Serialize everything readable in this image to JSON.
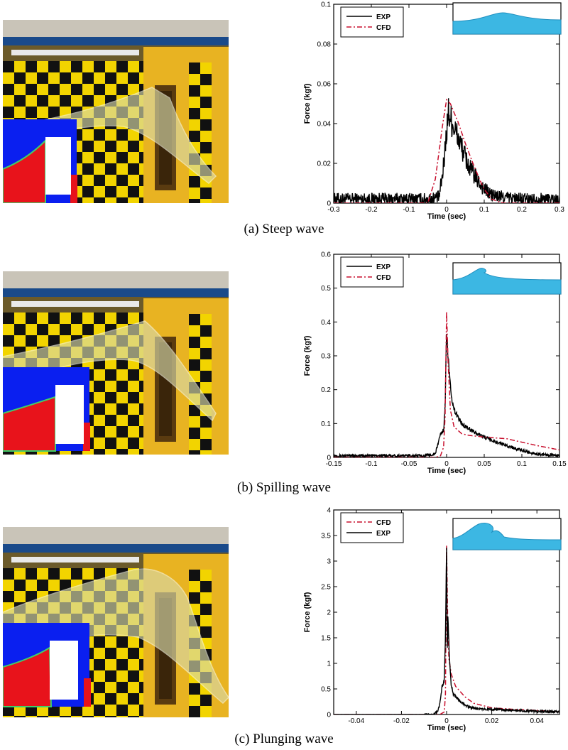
{
  "panels": [
    {
      "id": "a",
      "caption": "(a)  Steep  wave",
      "photo": {
        "description_colors": {
          "water": "#2bb0e0",
          "checker_dark": "#111111",
          "checker_light": "#f2d400",
          "cfd_fluid": "#e8131b",
          "cfd_air": "#0a1ff0"
        }
      },
      "chart_data": {
        "type": "line",
        "title": "",
        "xlabel": "Time (sec)",
        "ylabel": "Force (kgf)",
        "xlim": [
          -0.3,
          0.3
        ],
        "ylim": [
          0,
          0.1
        ],
        "xticks": [
          -0.3,
          -0.2,
          -0.1,
          0,
          0.1,
          0.2,
          0.3
        ],
        "xtick_labels": [
          "-0.3",
          "-0.2",
          "-0.1",
          "0",
          "0.1",
          "0.2",
          "0.3"
        ],
        "yticks": [
          0,
          0.02,
          0.04,
          0.06,
          0.08,
          0.1
        ],
        "ytick_labels": [
          "0",
          "0.02",
          "0.04",
          "0.06",
          "0.08",
          "0.1"
        ],
        "legend": {
          "position": "top-left",
          "entries": [
            "EXP",
            "CFD"
          ]
        },
        "series": [
          {
            "name": "EXP",
            "color": "#000000",
            "dash": "solid",
            "noise": 0.003,
            "noise_region": [
              -0.3,
              0.3
            ],
            "x": [
              -0.3,
              -0.05,
              -0.02,
              -0.01,
              0,
              0.005,
              0.01,
              0.02,
              0.04,
              0.06,
              0.08,
              0.1,
              0.12,
              0.15,
              0.2,
              0.3
            ],
            "y": [
              0.002,
              0.002,
              0.003,
              0.015,
              0.036,
              0.046,
              0.043,
              0.038,
              0.028,
              0.018,
              0.012,
              0.007,
              0.004,
              0.003,
              0.002,
              0.002
            ]
          },
          {
            "name": "CFD",
            "color": "#c8102e",
            "dash": "dashdot",
            "noise": 0,
            "noise_region": [
              0,
              0
            ],
            "x": [
              -0.3,
              -0.05,
              -0.03,
              -0.01,
              0,
              0.01,
              0.03,
              0.05,
              0.07,
              0.09,
              0.1,
              0.12,
              0.15,
              0.3
            ],
            "y": [
              0,
              0,
              0.012,
              0.04,
              0.052,
              0.05,
              0.041,
              0.03,
              0.02,
              0.011,
              0.007,
              0.002,
              0,
              0
            ]
          }
        ]
      }
    },
    {
      "id": "b",
      "caption": "(b)  Spilling  wave",
      "chart_data": {
        "type": "line",
        "title": "",
        "xlabel": "Time (sec)",
        "ylabel": "Force (kgf)",
        "xlim": [
          -0.15,
          0.15
        ],
        "ylim": [
          0,
          0.6
        ],
        "xticks": [
          -0.15,
          -0.1,
          -0.05,
          0,
          0.05,
          0.1,
          0.15
        ],
        "xtick_labels": [
          "-0.15",
          "-0.1",
          "-0.05",
          "0",
          "0.05",
          "0.1",
          "0.15"
        ],
        "yticks": [
          0,
          0.1,
          0.2,
          0.3,
          0.4,
          0.5,
          0.6
        ],
        "ytick_labels": [
          "0",
          "0.1",
          "0.2",
          "0.3",
          "0.4",
          "0.5",
          "0.6"
        ],
        "legend": {
          "position": "top-left",
          "entries": [
            "EXP",
            "CFD"
          ]
        },
        "series": [
          {
            "name": "EXP",
            "color": "#000000",
            "dash": "solid",
            "noise": 0.004,
            "noise_region": [
              -0.15,
              0.15
            ],
            "x": [
              -0.15,
              -0.03,
              -0.015,
              -0.008,
              -0.004,
              -0.002,
              0,
              0.002,
              0.006,
              0.01,
              0.02,
              0.04,
              0.06,
              0.08,
              0.1,
              0.12,
              0.15
            ],
            "y": [
              0.005,
              0.005,
              0.01,
              0.07,
              0.08,
              0.15,
              0.37,
              0.3,
              0.18,
              0.14,
              0.1,
              0.07,
              0.05,
              0.035,
              0.02,
              0.01,
              0.005
            ]
          },
          {
            "name": "CFD",
            "color": "#c8102e",
            "dash": "dashdot",
            "noise": 0,
            "noise_region": [
              0,
              0
            ],
            "x": [
              -0.15,
              -0.015,
              -0.008,
              -0.004,
              -0.002,
              0,
              0.002,
              0.005,
              0.01,
              0.02,
              0.03,
              0.05,
              0.08,
              0.1,
              0.12,
              0.15
            ],
            "y": [
              0,
              0,
              0.005,
              0.03,
              0.12,
              0.43,
              0.28,
              0.14,
              0.09,
              0.07,
              0.065,
              0.06,
              0.055,
              0.045,
              0.035,
              0.022
            ]
          }
        ]
      }
    },
    {
      "id": "c",
      "caption": "(c)  Plunging  wave",
      "chart_data": {
        "type": "line",
        "title": "",
        "xlabel": "Time (sec)",
        "ylabel": "Force (kgf)",
        "xlim": [
          -0.05,
          0.05
        ],
        "ylim": [
          0,
          4
        ],
        "xticks": [
          -0.04,
          -0.02,
          0,
          0.02,
          0.04
        ],
        "xtick_labels": [
          "-0.04",
          "-0.02",
          "0",
          "0.02",
          "0.04"
        ],
        "yticks": [
          0,
          0.5,
          1,
          1.5,
          2,
          2.5,
          3,
          3.5,
          4
        ],
        "ytick_labels": [
          "0",
          "0.5",
          "1",
          "1.5",
          "2",
          "2.5",
          "3",
          "3.5",
          "4"
        ],
        "legend": {
          "position": "top-left",
          "entries": [
            "CFD",
            "EXP"
          ]
        },
        "series": [
          {
            "name": "CFD",
            "color": "#c8102e",
            "dash": "dashdot",
            "noise": 0,
            "noise_region": [
              0,
              0
            ],
            "x": [
              -0.05,
              -0.003,
              -0.001,
              -0.0005,
              0,
              0.0005,
              0.001,
              0.002,
              0.004,
              0.008,
              0.012,
              0.02,
              0.03,
              0.04,
              0.05
            ],
            "y": [
              0,
              0,
              0.05,
              0.4,
              3.3,
              1.8,
              1.1,
              0.8,
              0.55,
              0.35,
              0.22,
              0.13,
              0.1,
              0.08,
              0.05
            ]
          },
          {
            "name": "EXP",
            "color": "#000000",
            "dash": "solid",
            "noise": 0.02,
            "noise_region": [
              -0.01,
              0.05
            ],
            "x": [
              -0.05,
              -0.006,
              -0.004,
              -0.003,
              -0.002,
              -0.0015,
              -0.001,
              -0.0005,
              0,
              0.0003,
              0.0006,
              0.001,
              0.0015,
              0.002,
              0.003,
              0.005,
              0.008,
              0.012,
              0.02,
              0.03,
              0.04,
              0.05
            ],
            "y": [
              0,
              0,
              0.05,
              0.2,
              0.55,
              0.6,
              0.7,
              1.5,
              3.3,
              1.2,
              1.95,
              1.4,
              0.9,
              0.6,
              0.4,
              0.3,
              0.18,
              0.12,
              0.1,
              0.08,
              0.06,
              0.05
            ]
          }
        ]
      }
    }
  ],
  "colors": {
    "water": "#3cb7e3",
    "water_line": "#1f8fbf",
    "cfd_air": "#0a1ff0",
    "cfd_fluid": "#e8131b",
    "cfd_interface": "#3fd06a",
    "checker_dark": "#111111",
    "checker_light": "#f2d400",
    "board": "#e8b322",
    "rail": "#1a4a8a"
  }
}
